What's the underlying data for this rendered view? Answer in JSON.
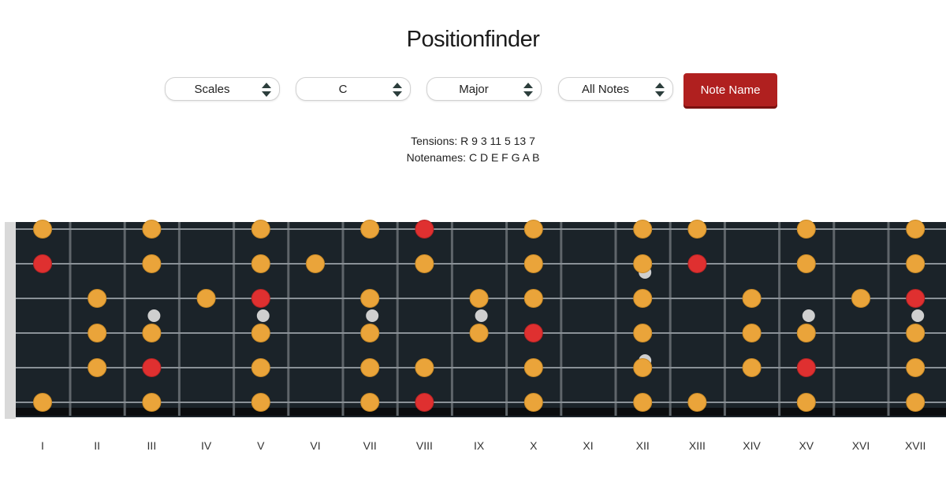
{
  "title": "Positionfinder",
  "selects": [
    {
      "value": "Scales"
    },
    {
      "value": "C"
    },
    {
      "value": "Major"
    },
    {
      "value": "All Notes"
    }
  ],
  "note_name_button": "Note Name",
  "tensions_label": "Tensions:",
  "tensions_value": "R 9 3 11 5 13 7",
  "notenames_label": "Notenames:",
  "notenames_value": "C D E F G A B",
  "colors": {
    "fretboard": "#1b2329",
    "note": "#eaa43a",
    "root": "#df3030",
    "inlay": "#cfcfcf",
    "button": "#b0201f"
  },
  "fret_numbers": [
    "I",
    "II",
    "III",
    "IV",
    "V",
    "VI",
    "VII",
    "VIII",
    "IX",
    "X",
    "XI",
    "XII",
    "XIII",
    "XIV",
    "XV",
    "XVI",
    "XVII"
  ],
  "notes": [
    {
      "string": 1,
      "fret": 1,
      "type": "note"
    },
    {
      "string": 1,
      "fret": 3,
      "type": "note"
    },
    {
      "string": 1,
      "fret": 5,
      "type": "note"
    },
    {
      "string": 1,
      "fret": 7,
      "type": "note"
    },
    {
      "string": 1,
      "fret": 8,
      "type": "root"
    },
    {
      "string": 1,
      "fret": 10,
      "type": "note"
    },
    {
      "string": 1,
      "fret": 12,
      "type": "note"
    },
    {
      "string": 1,
      "fret": 13,
      "type": "note"
    },
    {
      "string": 1,
      "fret": 15,
      "type": "note"
    },
    {
      "string": 1,
      "fret": 17,
      "type": "note"
    },
    {
      "string": 2,
      "fret": 1,
      "type": "root"
    },
    {
      "string": 2,
      "fret": 3,
      "type": "note"
    },
    {
      "string": 2,
      "fret": 5,
      "type": "note"
    },
    {
      "string": 2,
      "fret": 6,
      "type": "note"
    },
    {
      "string": 2,
      "fret": 8,
      "type": "note"
    },
    {
      "string": 2,
      "fret": 10,
      "type": "note"
    },
    {
      "string": 2,
      "fret": 12,
      "type": "note"
    },
    {
      "string": 2,
      "fret": 13,
      "type": "root"
    },
    {
      "string": 2,
      "fret": 15,
      "type": "note"
    },
    {
      "string": 2,
      "fret": 17,
      "type": "note"
    },
    {
      "string": 3,
      "fret": 2,
      "type": "note"
    },
    {
      "string": 3,
      "fret": 4,
      "type": "note"
    },
    {
      "string": 3,
      "fret": 5,
      "type": "root"
    },
    {
      "string": 3,
      "fret": 7,
      "type": "note"
    },
    {
      "string": 3,
      "fret": 9,
      "type": "note"
    },
    {
      "string": 3,
      "fret": 10,
      "type": "note"
    },
    {
      "string": 3,
      "fret": 12,
      "type": "note"
    },
    {
      "string": 3,
      "fret": 14,
      "type": "note"
    },
    {
      "string": 3,
      "fret": 16,
      "type": "note"
    },
    {
      "string": 3,
      "fret": 17,
      "type": "root"
    },
    {
      "string": 4,
      "fret": 2,
      "type": "note"
    },
    {
      "string": 4,
      "fret": 3,
      "type": "note"
    },
    {
      "string": 4,
      "fret": 5,
      "type": "note"
    },
    {
      "string": 4,
      "fret": 7,
      "type": "note"
    },
    {
      "string": 4,
      "fret": 9,
      "type": "note"
    },
    {
      "string": 4,
      "fret": 10,
      "type": "root"
    },
    {
      "string": 4,
      "fret": 12,
      "type": "note"
    },
    {
      "string": 4,
      "fret": 14,
      "type": "note"
    },
    {
      "string": 4,
      "fret": 15,
      "type": "note"
    },
    {
      "string": 4,
      "fret": 17,
      "type": "note"
    },
    {
      "string": 5,
      "fret": 2,
      "type": "note"
    },
    {
      "string": 5,
      "fret": 3,
      "type": "root"
    },
    {
      "string": 5,
      "fret": 5,
      "type": "note"
    },
    {
      "string": 5,
      "fret": 7,
      "type": "note"
    },
    {
      "string": 5,
      "fret": 8,
      "type": "note"
    },
    {
      "string": 5,
      "fret": 10,
      "type": "note"
    },
    {
      "string": 5,
      "fret": 12,
      "type": "note"
    },
    {
      "string": 5,
      "fret": 14,
      "type": "note"
    },
    {
      "string": 5,
      "fret": 15,
      "type": "root"
    },
    {
      "string": 5,
      "fret": 17,
      "type": "note"
    },
    {
      "string": 6,
      "fret": 1,
      "type": "note"
    },
    {
      "string": 6,
      "fret": 3,
      "type": "note"
    },
    {
      "string": 6,
      "fret": 5,
      "type": "note"
    },
    {
      "string": 6,
      "fret": 7,
      "type": "note"
    },
    {
      "string": 6,
      "fret": 8,
      "type": "root"
    },
    {
      "string": 6,
      "fret": 10,
      "type": "note"
    },
    {
      "string": 6,
      "fret": 12,
      "type": "note"
    },
    {
      "string": 6,
      "fret": 13,
      "type": "note"
    },
    {
      "string": 6,
      "fret": 15,
      "type": "note"
    },
    {
      "string": 6,
      "fret": 17,
      "type": "note"
    }
  ],
  "inlays": [
    {
      "fret": 3
    },
    {
      "fret": 5
    },
    {
      "fret": 7
    },
    {
      "fret": 9
    },
    {
      "fret": 12,
      "double": true
    },
    {
      "fret": 15
    },
    {
      "fret": 17
    }
  ]
}
